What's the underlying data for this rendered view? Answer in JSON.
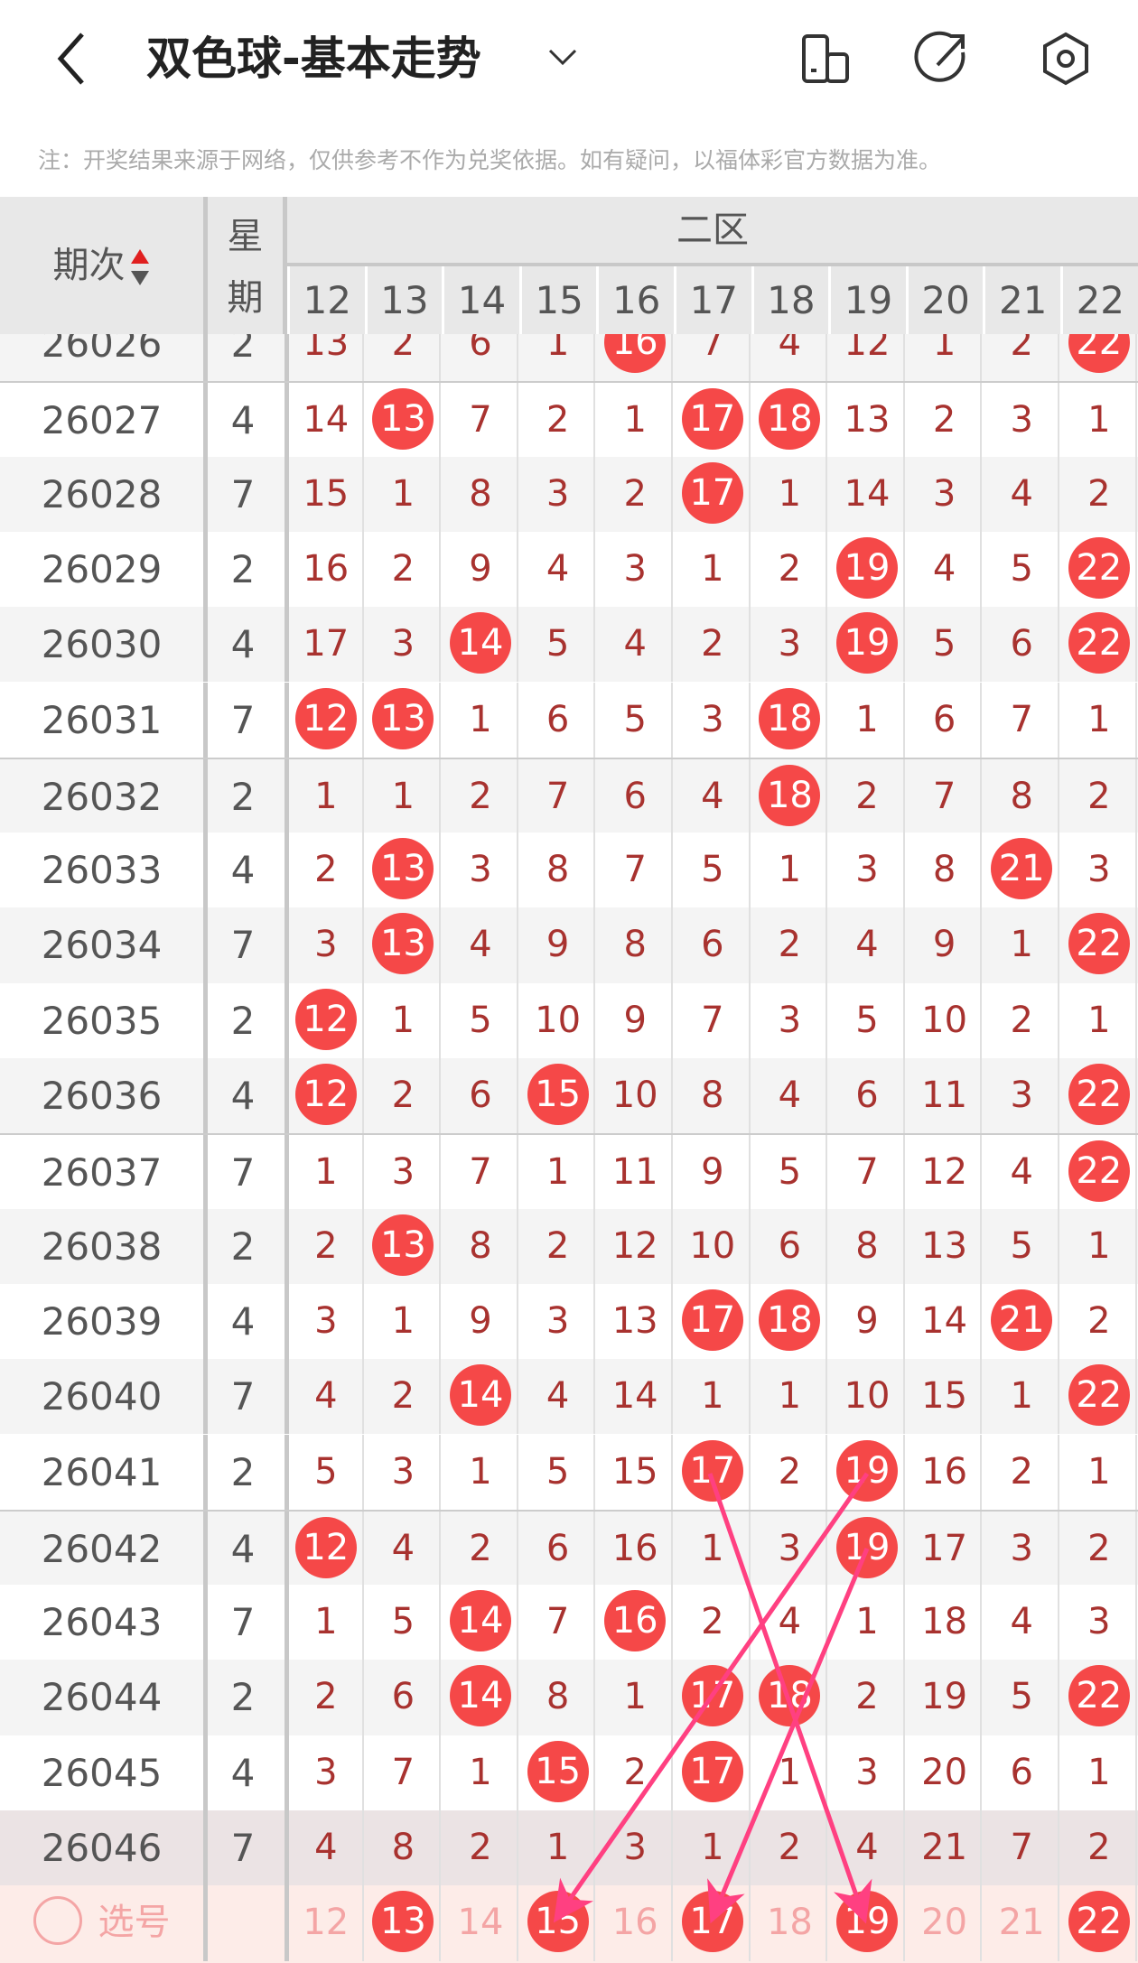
{
  "header": {
    "title": "双色球-基本走势",
    "icons": [
      "back-icon",
      "chevron-down-icon",
      "device-icon",
      "share-icon",
      "settings-icon"
    ]
  },
  "note": "注：开奖结果来源于网络，仅供参考不作为兑奖依据。如有疑问，以福体彩官方数据为准。",
  "table": {
    "issue_label": "期次",
    "week_label": "星期",
    "zone_label": "二区",
    "columns": [
      "12",
      "13",
      "14",
      "15",
      "16",
      "17",
      "18",
      "19",
      "20",
      "21",
      "22"
    ],
    "rows": [
      {
        "issue": "26026",
        "week": "2",
        "values": [
          "13",
          "2",
          "6",
          "1",
          "16",
          "7",
          "4",
          "12",
          "1",
          "2",
          "22"
        ],
        "hits": [
          4,
          10
        ]
      },
      {
        "issue": "26027",
        "week": "4",
        "values": [
          "14",
          "13",
          "7",
          "2",
          "1",
          "17",
          "18",
          "13",
          "2",
          "3",
          "1"
        ],
        "hits": [
          1,
          5,
          6
        ]
      },
      {
        "issue": "26028",
        "week": "7",
        "values": [
          "15",
          "1",
          "8",
          "3",
          "2",
          "17",
          "1",
          "14",
          "3",
          "4",
          "2"
        ],
        "hits": [
          5
        ]
      },
      {
        "issue": "26029",
        "week": "2",
        "values": [
          "16",
          "2",
          "9",
          "4",
          "3",
          "1",
          "2",
          "19",
          "4",
          "5",
          "22"
        ],
        "hits": [
          7,
          10
        ]
      },
      {
        "issue": "26030",
        "week": "4",
        "values": [
          "17",
          "3",
          "14",
          "5",
          "4",
          "2",
          "3",
          "19",
          "5",
          "6",
          "22"
        ],
        "hits": [
          2,
          7,
          10
        ]
      },
      {
        "issue": "26031",
        "week": "7",
        "values": [
          "12",
          "13",
          "1",
          "6",
          "5",
          "3",
          "18",
          "1",
          "6",
          "7",
          "1"
        ],
        "hits": [
          0,
          1,
          6
        ]
      },
      {
        "issue": "26032",
        "week": "2",
        "values": [
          "1",
          "1",
          "2",
          "7",
          "6",
          "4",
          "18",
          "2",
          "7",
          "8",
          "2"
        ],
        "hits": [
          6
        ]
      },
      {
        "issue": "26033",
        "week": "4",
        "values": [
          "2",
          "13",
          "3",
          "8",
          "7",
          "5",
          "1",
          "3",
          "8",
          "21",
          "3"
        ],
        "hits": [
          1,
          9
        ]
      },
      {
        "issue": "26034",
        "week": "7",
        "values": [
          "3",
          "13",
          "4",
          "9",
          "8",
          "6",
          "2",
          "4",
          "9",
          "1",
          "22"
        ],
        "hits": [
          1,
          10
        ]
      },
      {
        "issue": "26035",
        "week": "2",
        "values": [
          "12",
          "1",
          "5",
          "10",
          "9",
          "7",
          "3",
          "5",
          "10",
          "2",
          "1"
        ],
        "hits": [
          0
        ]
      },
      {
        "issue": "26036",
        "week": "4",
        "values": [
          "12",
          "2",
          "6",
          "15",
          "10",
          "8",
          "4",
          "6",
          "11",
          "3",
          "22"
        ],
        "hits": [
          0,
          3,
          10
        ]
      },
      {
        "issue": "26037",
        "week": "7",
        "values": [
          "1",
          "3",
          "7",
          "1",
          "11",
          "9",
          "5",
          "7",
          "12",
          "4",
          "22"
        ],
        "hits": [
          10
        ]
      },
      {
        "issue": "26038",
        "week": "2",
        "values": [
          "2",
          "13",
          "8",
          "2",
          "12",
          "10",
          "6",
          "8",
          "13",
          "5",
          "1"
        ],
        "hits": [
          1
        ]
      },
      {
        "issue": "26039",
        "week": "4",
        "values": [
          "3",
          "1",
          "9",
          "3",
          "13",
          "17",
          "18",
          "9",
          "14",
          "21",
          "2"
        ],
        "hits": [
          5,
          6,
          9
        ]
      },
      {
        "issue": "26040",
        "week": "7",
        "values": [
          "4",
          "2",
          "14",
          "4",
          "14",
          "1",
          "1",
          "10",
          "15",
          "1",
          "22"
        ],
        "hits": [
          2,
          10
        ]
      },
      {
        "issue": "26041",
        "week": "2",
        "values": [
          "5",
          "3",
          "1",
          "5",
          "15",
          "17",
          "2",
          "19",
          "16",
          "2",
          "1"
        ],
        "hits": [
          5,
          7
        ]
      },
      {
        "issue": "26042",
        "week": "4",
        "values": [
          "12",
          "4",
          "2",
          "6",
          "16",
          "1",
          "3",
          "19",
          "17",
          "3",
          "2"
        ],
        "hits": [
          0,
          7
        ]
      },
      {
        "issue": "26043",
        "week": "7",
        "values": [
          "1",
          "5",
          "14",
          "7",
          "16",
          "2",
          "4",
          "1",
          "18",
          "4",
          "3"
        ],
        "hits": [
          2,
          4
        ]
      },
      {
        "issue": "26044",
        "week": "2",
        "values": [
          "2",
          "6",
          "14",
          "8",
          "1",
          "17",
          "18",
          "2",
          "19",
          "5",
          "22"
        ],
        "hits": [
          2,
          5,
          6,
          10
        ]
      },
      {
        "issue": "26045",
        "week": "4",
        "values": [
          "3",
          "7",
          "1",
          "15",
          "2",
          "17",
          "1",
          "3",
          "20",
          "6",
          "1"
        ],
        "hits": [
          3,
          5
        ]
      },
      {
        "issue": "26046",
        "week": "7",
        "values": [
          "4",
          "8",
          "2",
          "1",
          "3",
          "1",
          "2",
          "4",
          "21",
          "7",
          "2"
        ],
        "hits": []
      }
    ],
    "pick": {
      "label": "选号",
      "values": [
        "12",
        "13",
        "14",
        "15",
        "16",
        "17",
        "18",
        "19",
        "20",
        "21",
        "22"
      ],
      "selected": [
        1,
        3,
        5,
        7,
        10
      ]
    }
  },
  "colors": {
    "hit": "#f54848",
    "miss_text": "#a8322f",
    "arrow": "#ff4081",
    "pick_bg": "#fdece8"
  }
}
